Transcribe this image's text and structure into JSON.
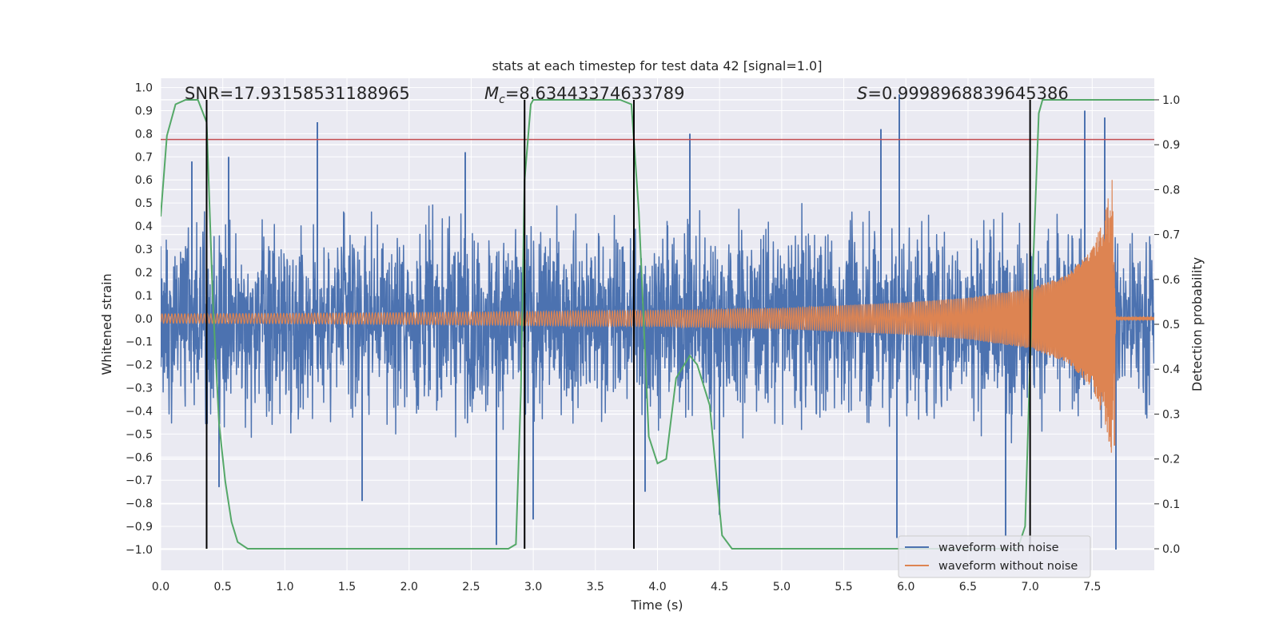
{
  "chart_data": {
    "type": "line",
    "title": "stats at each timestep for test data 42 [signal=1.0]",
    "xlabel": "Time (s)",
    "ylabel": "Whitened strain",
    "y2label": "Detection probability",
    "xlim": [
      0.0,
      8.0
    ],
    "ylim": [
      -1.09,
      1.04
    ],
    "y2lim": [
      -0.048,
      1.048
    ],
    "xticks": [
      "0.0",
      "0.5",
      "1.0",
      "1.5",
      "2.0",
      "2.5",
      "3.0",
      "3.5",
      "4.0",
      "4.5",
      "5.0",
      "5.5",
      "6.0",
      "6.5",
      "7.0",
      "7.5"
    ],
    "yticks": [
      "1.0",
      "0.9",
      "0.8",
      "0.7",
      "0.6",
      "0.5",
      "0.4",
      "0.3",
      "0.2",
      "0.1",
      "0.0",
      "-0.1",
      "-0.2",
      "-0.3",
      "-0.4",
      "-0.5",
      "-0.6",
      "-0.7",
      "-0.8",
      "-0.9",
      "-1.0"
    ],
    "y2ticks": [
      "1.0",
      "0.9",
      "0.8",
      "0.7",
      "0.6",
      "0.5",
      "0.4",
      "0.3",
      "0.2",
      "0.1",
      "0.0"
    ],
    "grid": true,
    "legend_position": "lower-right",
    "legend": [
      "waveform with noise",
      "waveform without noise"
    ],
    "annotations": {
      "snr_text": "SNR=17.93158531188965",
      "mc_symbol": "M",
      "mc_sub": "c",
      "mc_value": "=8.63443374633789",
      "s_symbol": "S",
      "s_value": "=0.9998968839645386"
    },
    "threshold_y": 0.775,
    "vertical_lines_x": [
      0.37,
      2.93,
      3.81,
      7.0
    ],
    "noise_series": {
      "name": "waveform with noise",
      "color": "#4c72b0",
      "peaks": [
        {
          "x": 0.25,
          "y": 0.68
        },
        {
          "x": 0.55,
          "y": 0.7
        },
        {
          "x": 1.26,
          "y": 0.85
        },
        {
          "x": 2.45,
          "y": 0.72
        },
        {
          "x": 4.26,
          "y": 0.8
        },
        {
          "x": 5.8,
          "y": 0.82
        },
        {
          "x": 5.95,
          "y": 0.97
        },
        {
          "x": 7.44,
          "y": 0.9
        },
        {
          "x": 7.6,
          "y": 0.87
        }
      ],
      "troughs": [
        {
          "x": 0.47,
          "y": -0.73
        },
        {
          "x": 1.62,
          "y": -0.79
        },
        {
          "x": 2.7,
          "y": -0.98
        },
        {
          "x": 3.0,
          "y": -0.87
        },
        {
          "x": 3.9,
          "y": -0.75
        },
        {
          "x": 4.5,
          "y": -0.85
        },
        {
          "x": 5.93,
          "y": -0.95
        },
        {
          "x": 6.8,
          "y": -0.94
        },
        {
          "x": 7.69,
          "y": -1.0
        }
      ]
    },
    "clean_series": {
      "name": "waveform without noise",
      "color": "#dd8452",
      "x": [
        0.0,
        1.0,
        2.0,
        3.0,
        4.0,
        5.0,
        6.0,
        6.5,
        7.0,
        7.3,
        7.5,
        7.6,
        7.66,
        7.69,
        8.0
      ],
      "amplitude": [
        0.02,
        0.022,
        0.025,
        0.03,
        0.035,
        0.045,
        0.07,
        0.09,
        0.13,
        0.19,
        0.3,
        0.45,
        0.6,
        0.0,
        0.0
      ],
      "chirp_end_x": 7.69
    },
    "probability_series": {
      "name": "detection probability",
      "color": "#55a868",
      "x": [
        0.0,
        0.05,
        0.12,
        0.2,
        0.3,
        0.37,
        0.42,
        0.47,
        0.52,
        0.57,
        0.62,
        0.7,
        1.0,
        2.0,
        2.8,
        2.86,
        2.9,
        2.93,
        2.98,
        3.0,
        3.5,
        3.7,
        3.79,
        3.85,
        3.93,
        4.0,
        4.07,
        4.15,
        4.26,
        4.32,
        4.42,
        4.52,
        4.6,
        5.0,
        6.0,
        6.9,
        6.96,
        7.02,
        7.07,
        7.1,
        7.5,
        8.0
      ],
      "y": [
        0.74,
        0.92,
        0.99,
        1.0,
        1.0,
        0.95,
        0.55,
        0.28,
        0.15,
        0.06,
        0.015,
        0.0,
        0.0,
        0.0,
        0.0,
        0.01,
        0.35,
        0.82,
        0.99,
        1.0,
        1.0,
        1.0,
        0.99,
        0.75,
        0.25,
        0.19,
        0.2,
        0.38,
        0.43,
        0.41,
        0.32,
        0.03,
        0.0,
        0.0,
        0.0,
        0.0,
        0.05,
        0.6,
        0.97,
        1.0,
        1.0,
        1.0
      ]
    }
  }
}
